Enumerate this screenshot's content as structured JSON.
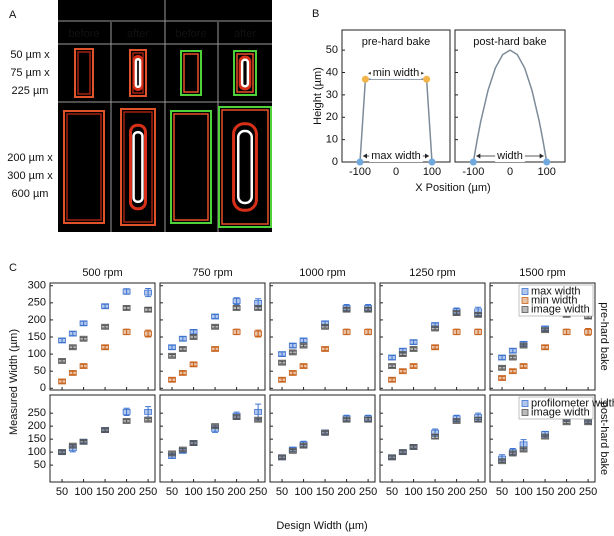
{
  "panel_a": {
    "label": "A",
    "columns": [
      "before",
      "after",
      "before",
      "after"
    ],
    "rows": [
      [
        "50 µm x",
        "75 µm x",
        "225 µm"
      ],
      [
        "200 µm x",
        "300 µm x",
        "600 µm"
      ]
    ]
  },
  "panel_b": {
    "label": "B",
    "ylabel": "Height (µm)",
    "xlabel": "X Position (µm)"
  },
  "panel_c": {
    "label": "C",
    "ylabel": "Measured Width (µm)",
    "xlabel": "Design Width (µm)",
    "columns": [
      "500 rpm",
      "750 rpm",
      "1000 rpm",
      "1250 rpm",
      "1500 rpm"
    ],
    "rows": [
      "pre-hard bake",
      "post-hard bake"
    ]
  },
  "chart_data": [
    {
      "type": "line",
      "title": "pre-hard bake",
      "xlim": [
        -150,
        150
      ],
      "ylim": [
        0,
        59
      ],
      "xticks": [
        -100,
        0,
        100
      ],
      "yticks": [
        0,
        10,
        20,
        30,
        40,
        50
      ],
      "series": [
        {
          "color": "#7d8b99",
          "x": [
            -100,
            -85,
            85,
            100
          ],
          "values": [
            0,
            37,
            37,
            0
          ]
        }
      ],
      "markers": [
        {
          "color": "#f3b54a",
          "x": [
            -85,
            85
          ],
          "values": [
            37,
            37
          ]
        },
        {
          "color": "#6fa8dc",
          "x": [
            -100,
            100
          ],
          "values": [
            0,
            0
          ]
        }
      ],
      "annotations": [
        "min width",
        "max width"
      ]
    },
    {
      "type": "line",
      "title": "post-hard bake",
      "xlim": [
        -150,
        150
      ],
      "ylim": [
        0,
        59
      ],
      "xticks": [
        -100,
        0,
        100
      ],
      "yticks": [
        0,
        10,
        20,
        30,
        40,
        50
      ],
      "series": [
        {
          "color": "#7d8b99",
          "x": [
            -100,
            -90,
            -80,
            -60,
            -40,
            -20,
            0,
            20,
            40,
            60,
            80,
            90,
            100
          ],
          "values": [
            0,
            9.5,
            18,
            32,
            42,
            48,
            50,
            48,
            42,
            32,
            18,
            9.5,
            0
          ]
        }
      ],
      "markers": [
        {
          "color": "#6fa8dc",
          "x": [
            -100,
            100
          ],
          "values": [
            0,
            0
          ]
        }
      ],
      "annotations": [
        "width"
      ]
    },
    {
      "type": "scatter",
      "xlim": [
        22,
        266
      ],
      "ylim": [
        -5,
        308
      ],
      "xticks": [
        50,
        100,
        150,
        200,
        250
      ],
      "yticks": [
        0,
        50,
        100,
        150,
        200,
        250,
        300
      ],
      "series": [
        {
          "color": "#3f74d0",
          "x": [
            50,
            75,
            100,
            150,
            200,
            250
          ],
          "values": [
            140,
            160,
            190,
            240,
            283,
            280
          ],
          "errors": [
            6,
            6,
            6,
            6,
            8,
            12
          ]
        },
        {
          "color": "#c8631d",
          "x": [
            50,
            75,
            100,
            150,
            200,
            250
          ],
          "values": [
            20,
            45,
            65,
            120,
            165,
            160
          ],
          "errors": [
            5,
            5,
            5,
            5,
            8,
            10
          ]
        },
        {
          "color": "#555555",
          "x": [
            50,
            75,
            100,
            150,
            200,
            250
          ],
          "values": [
            80,
            120,
            145,
            180,
            235,
            230
          ],
          "errors": [
            4,
            4,
            4,
            4,
            5,
            5
          ]
        }
      ]
    },
    {
      "type": "scatter",
      "xlim": [
        22,
        266
      ],
      "ylim": [
        -5,
        308
      ],
      "xticks": [
        50,
        100,
        150,
        200,
        250
      ],
      "yticks": [
        0,
        50,
        100,
        150,
        200,
        250,
        300
      ],
      "series": [
        {
          "color": "#3f74d0",
          "x": [
            50,
            75,
            100,
            150,
            200,
            250
          ],
          "values": [
            120,
            145,
            165,
            210,
            255,
            250
          ],
          "errors": [
            6,
            6,
            6,
            6,
            10,
            12
          ]
        },
        {
          "color": "#c8631d",
          "x": [
            50,
            75,
            100,
            150,
            200,
            250
          ],
          "values": [
            25,
            45,
            70,
            115,
            165,
            160
          ],
          "errors": [
            5,
            5,
            5,
            5,
            8,
            10
          ]
        },
        {
          "color": "#555555",
          "x": [
            50,
            75,
            100,
            150,
            200,
            250
          ],
          "values": [
            95,
            115,
            150,
            180,
            235,
            235
          ],
          "errors": [
            4,
            4,
            4,
            4,
            5,
            5
          ]
        }
      ]
    },
    {
      "type": "scatter",
      "xlim": [
        22,
        266
      ],
      "ylim": [
        -5,
        308
      ],
      "xticks": [
        50,
        100,
        150,
        200,
        250
      ],
      "yticks": [
        0,
        50,
        100,
        150,
        200,
        250,
        300
      ],
      "series": [
        {
          "color": "#3f74d0",
          "x": [
            50,
            75,
            100,
            150,
            200,
            250
          ],
          "values": [
            100,
            125,
            140,
            190,
            235,
            235
          ],
          "errors": [
            6,
            6,
            6,
            6,
            10,
            10
          ]
        },
        {
          "color": "#c8631d",
          "x": [
            50,
            75,
            100,
            150,
            200,
            250
          ],
          "values": [
            25,
            45,
            65,
            115,
            165,
            165
          ],
          "errors": [
            5,
            5,
            5,
            5,
            8,
            8
          ]
        },
        {
          "color": "#555555",
          "x": [
            50,
            75,
            100,
            150,
            200,
            250
          ],
          "values": [
            75,
            105,
            125,
            180,
            230,
            230
          ],
          "errors": [
            4,
            4,
            4,
            4,
            5,
            5
          ]
        }
      ]
    },
    {
      "type": "scatter",
      "xlim": [
        22,
        266
      ],
      "ylim": [
        -5,
        308
      ],
      "xticks": [
        50,
        100,
        150,
        200,
        250
      ],
      "yticks": [
        0,
        50,
        100,
        150,
        200,
        250,
        300
      ],
      "series": [
        {
          "color": "#3f74d0",
          "x": [
            50,
            75,
            100,
            150,
            200,
            250
          ],
          "values": [
            90,
            110,
            135,
            185,
            225,
            225
          ],
          "errors": [
            6,
            6,
            6,
            6,
            10,
            12
          ]
        },
        {
          "color": "#c8631d",
          "x": [
            50,
            75,
            100,
            150,
            200,
            250
          ],
          "values": [
            25,
            50,
            65,
            120,
            165,
            165
          ],
          "errors": [
            5,
            5,
            5,
            5,
            8,
            8
          ]
        },
        {
          "color": "#555555",
          "x": [
            50,
            75,
            100,
            150,
            200,
            250
          ],
          "values": [
            65,
            100,
            115,
            175,
            220,
            215
          ],
          "errors": [
            4,
            4,
            4,
            4,
            5,
            5
          ]
        }
      ]
    },
    {
      "type": "scatter",
      "xlim": [
        22,
        266
      ],
      "ylim": [
        -5,
        308
      ],
      "xticks": [
        50,
        100,
        150,
        200,
        250
      ],
      "yticks": [
        0,
        50,
        100,
        150,
        200,
        250,
        300
      ],
      "legend": "upper right",
      "series": [
        {
          "name": "max width",
          "color": "#3f74d0",
          "x": [
            50,
            75,
            100,
            150,
            200,
            250
          ],
          "values": [
            90,
            110,
            130,
            175,
            225,
            225
          ],
          "errors": [
            6,
            6,
            6,
            6,
            10,
            12
          ]
        },
        {
          "name": "min width",
          "color": "#c8631d",
          "x": [
            50,
            75,
            100,
            150,
            200,
            250
          ],
          "values": [
            30,
            50,
            65,
            120,
            165,
            165
          ],
          "errors": [
            5,
            5,
            5,
            5,
            8,
            10
          ]
        },
        {
          "name": "image width",
          "color": "#555555",
          "x": [
            50,
            75,
            100,
            150,
            200,
            250
          ],
          "values": [
            60,
            90,
            125,
            170,
            215,
            210
          ],
          "errors": [
            4,
            4,
            4,
            4,
            5,
            5
          ]
        }
      ]
    },
    {
      "type": "scatter",
      "xlim": [
        22,
        266
      ],
      "ylim": [
        -15,
        320
      ],
      "xticks": [
        50,
        100,
        150,
        200,
        250
      ],
      "yticks": [
        50,
        100,
        150,
        200,
        250
      ],
      "series": [
        {
          "color": "#3f74d0",
          "x": [
            50,
            75,
            100,
            150,
            200,
            250
          ],
          "values": [
            100,
            115,
            140,
            185,
            255,
            255
          ],
          "errors": [
            8,
            14,
            8,
            8,
            14,
            20
          ]
        },
        {
          "color": "#555555",
          "x": [
            50,
            75,
            100,
            150,
            200,
            250
          ],
          "values": [
            100,
            125,
            140,
            185,
            220,
            225
          ],
          "errors": [
            5,
            5,
            5,
            5,
            5,
            5
          ]
        }
      ]
    },
    {
      "type": "scatter",
      "xlim": [
        22,
        266
      ],
      "ylim": [
        -15,
        320
      ],
      "xticks": [
        50,
        100,
        150,
        200,
        250
      ],
      "yticks": [
        50,
        100,
        150,
        200,
        250
      ],
      "series": [
        {
          "color": "#3f74d0",
          "x": [
            50,
            75,
            100,
            150,
            200,
            250
          ],
          "values": [
            85,
            105,
            135,
            190,
            240,
            255
          ],
          "errors": [
            8,
            8,
            6,
            14,
            14,
            30
          ]
        },
        {
          "color": "#555555",
          "x": [
            50,
            75,
            100,
            150,
            200,
            250
          ],
          "values": [
            95,
            110,
            135,
            200,
            235,
            225
          ],
          "errors": [
            5,
            5,
            5,
            5,
            5,
            5
          ]
        }
      ]
    },
    {
      "type": "scatter",
      "xlim": [
        22,
        266
      ],
      "ylim": [
        -15,
        320
      ],
      "xticks": [
        50,
        100,
        150,
        200,
        250
      ],
      "yticks": [
        50,
        100,
        150,
        200,
        250
      ],
      "series": [
        {
          "color": "#3f74d0",
          "x": [
            50,
            75,
            100,
            150,
            200,
            250
          ],
          "values": [
            80,
            110,
            130,
            175,
            230,
            230
          ],
          "errors": [
            6,
            8,
            12,
            10,
            12,
            12
          ]
        },
        {
          "color": "#555555",
          "x": [
            50,
            75,
            100,
            150,
            200,
            250
          ],
          "values": [
            80,
            105,
            125,
            175,
            225,
            225
          ],
          "errors": [
            5,
            5,
            5,
            5,
            5,
            8
          ]
        }
      ]
    },
    {
      "type": "scatter",
      "xlim": [
        22,
        266
      ],
      "ylim": [
        -15,
        320
      ],
      "xticks": [
        50,
        100,
        150,
        200,
        250
      ],
      "yticks": [
        50,
        100,
        150,
        200,
        250
      ],
      "series": [
        {
          "color": "#3f74d0",
          "x": [
            50,
            75,
            100,
            150,
            200,
            250
          ],
          "values": [
            80,
            100,
            120,
            175,
            230,
            235
          ],
          "errors": [
            6,
            6,
            6,
            14,
            12,
            15
          ]
        },
        {
          "color": "#555555",
          "x": [
            50,
            75,
            100,
            150,
            200,
            250
          ],
          "values": [
            80,
            100,
            120,
            160,
            220,
            225
          ],
          "errors": [
            5,
            5,
            5,
            8,
            5,
            8
          ]
        }
      ]
    },
    {
      "type": "scatter",
      "xlim": [
        22,
        266
      ],
      "ylim": [
        -15,
        320
      ],
      "xticks": [
        50,
        100,
        150,
        200,
        250
      ],
      "yticks": [
        50,
        100,
        150,
        200,
        250
      ],
      "legend": "upper right",
      "series": [
        {
          "name": "profilometer width",
          "color": "#3f74d0",
          "x": [
            50,
            75,
            100,
            150,
            200,
            250
          ],
          "values": [
            75,
            100,
            130,
            170,
            230,
            225
          ],
          "errors": [
            15,
            14,
            18,
            10,
            12,
            15
          ]
        },
        {
          "name": "image width",
          "color": "#555555",
          "x": [
            50,
            75,
            100,
            150,
            200,
            250
          ],
          "values": [
            65,
            95,
            110,
            160,
            215,
            215
          ],
          "errors": [
            5,
            5,
            5,
            5,
            5,
            5
          ]
        }
      ]
    }
  ]
}
